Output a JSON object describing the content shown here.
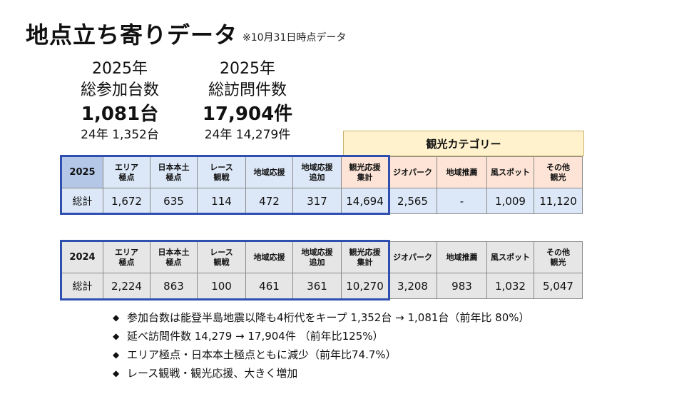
{
  "title": "地点立ち寄りデータ",
  "title_note": "※10月31日時点データ",
  "stats": {
    "units": {
      "year": "2025年",
      "label": "総参加台数",
      "value": "1,081台",
      "prev": "24年  1,352台"
    },
    "visits": {
      "year": "2025年",
      "label": "総訪問件数",
      "value": "17,904件",
      "prev": "24年  14,279件"
    }
  },
  "tourism_category_label": "観光カテゴリー",
  "table_2025": {
    "year": "2025",
    "headers": [
      "エリア\n極点",
      "日本本土\n極点",
      "レース\n観戦",
      "地域応援",
      "地域応援\n追加",
      "観光応援\n集計",
      "ジオパーク",
      "地域推薦",
      "風スポット",
      "その他\n観光"
    ],
    "row_label": "総計",
    "values": [
      "1,672",
      "635",
      "114",
      "472",
      "317",
      "14,694",
      "2,565",
      "-",
      "1,009",
      "11,120"
    ]
  },
  "table_2024": {
    "year": "2024",
    "headers": [
      "エリア\n極点",
      "日本本土\n極点",
      "レース\n観戦",
      "地域応援",
      "地域応援\n追加",
      "観光応援\n集計",
      "ジオパーク",
      "地域推薦",
      "風スポット",
      "その他\n観光"
    ],
    "row_label": "総計",
    "values": [
      "2,224",
      "863",
      "100",
      "461",
      "361",
      "10,270",
      "3,208",
      "983",
      "1,032",
      "5,047"
    ]
  },
  "bullets": [
    "参加台数は能登半島地震以降も4桁代をキープ  1,352台  →  1,081台（前年比  80%）",
    "延べ訪問件数  14,279  →  17,904件   （前年比125%）",
    "エリア極点・日本本土極点ともに減少（前年比74.7%）",
    "レース観戦・観光応援、大きく増加"
  ],
  "bullet_marker": "◆"
}
